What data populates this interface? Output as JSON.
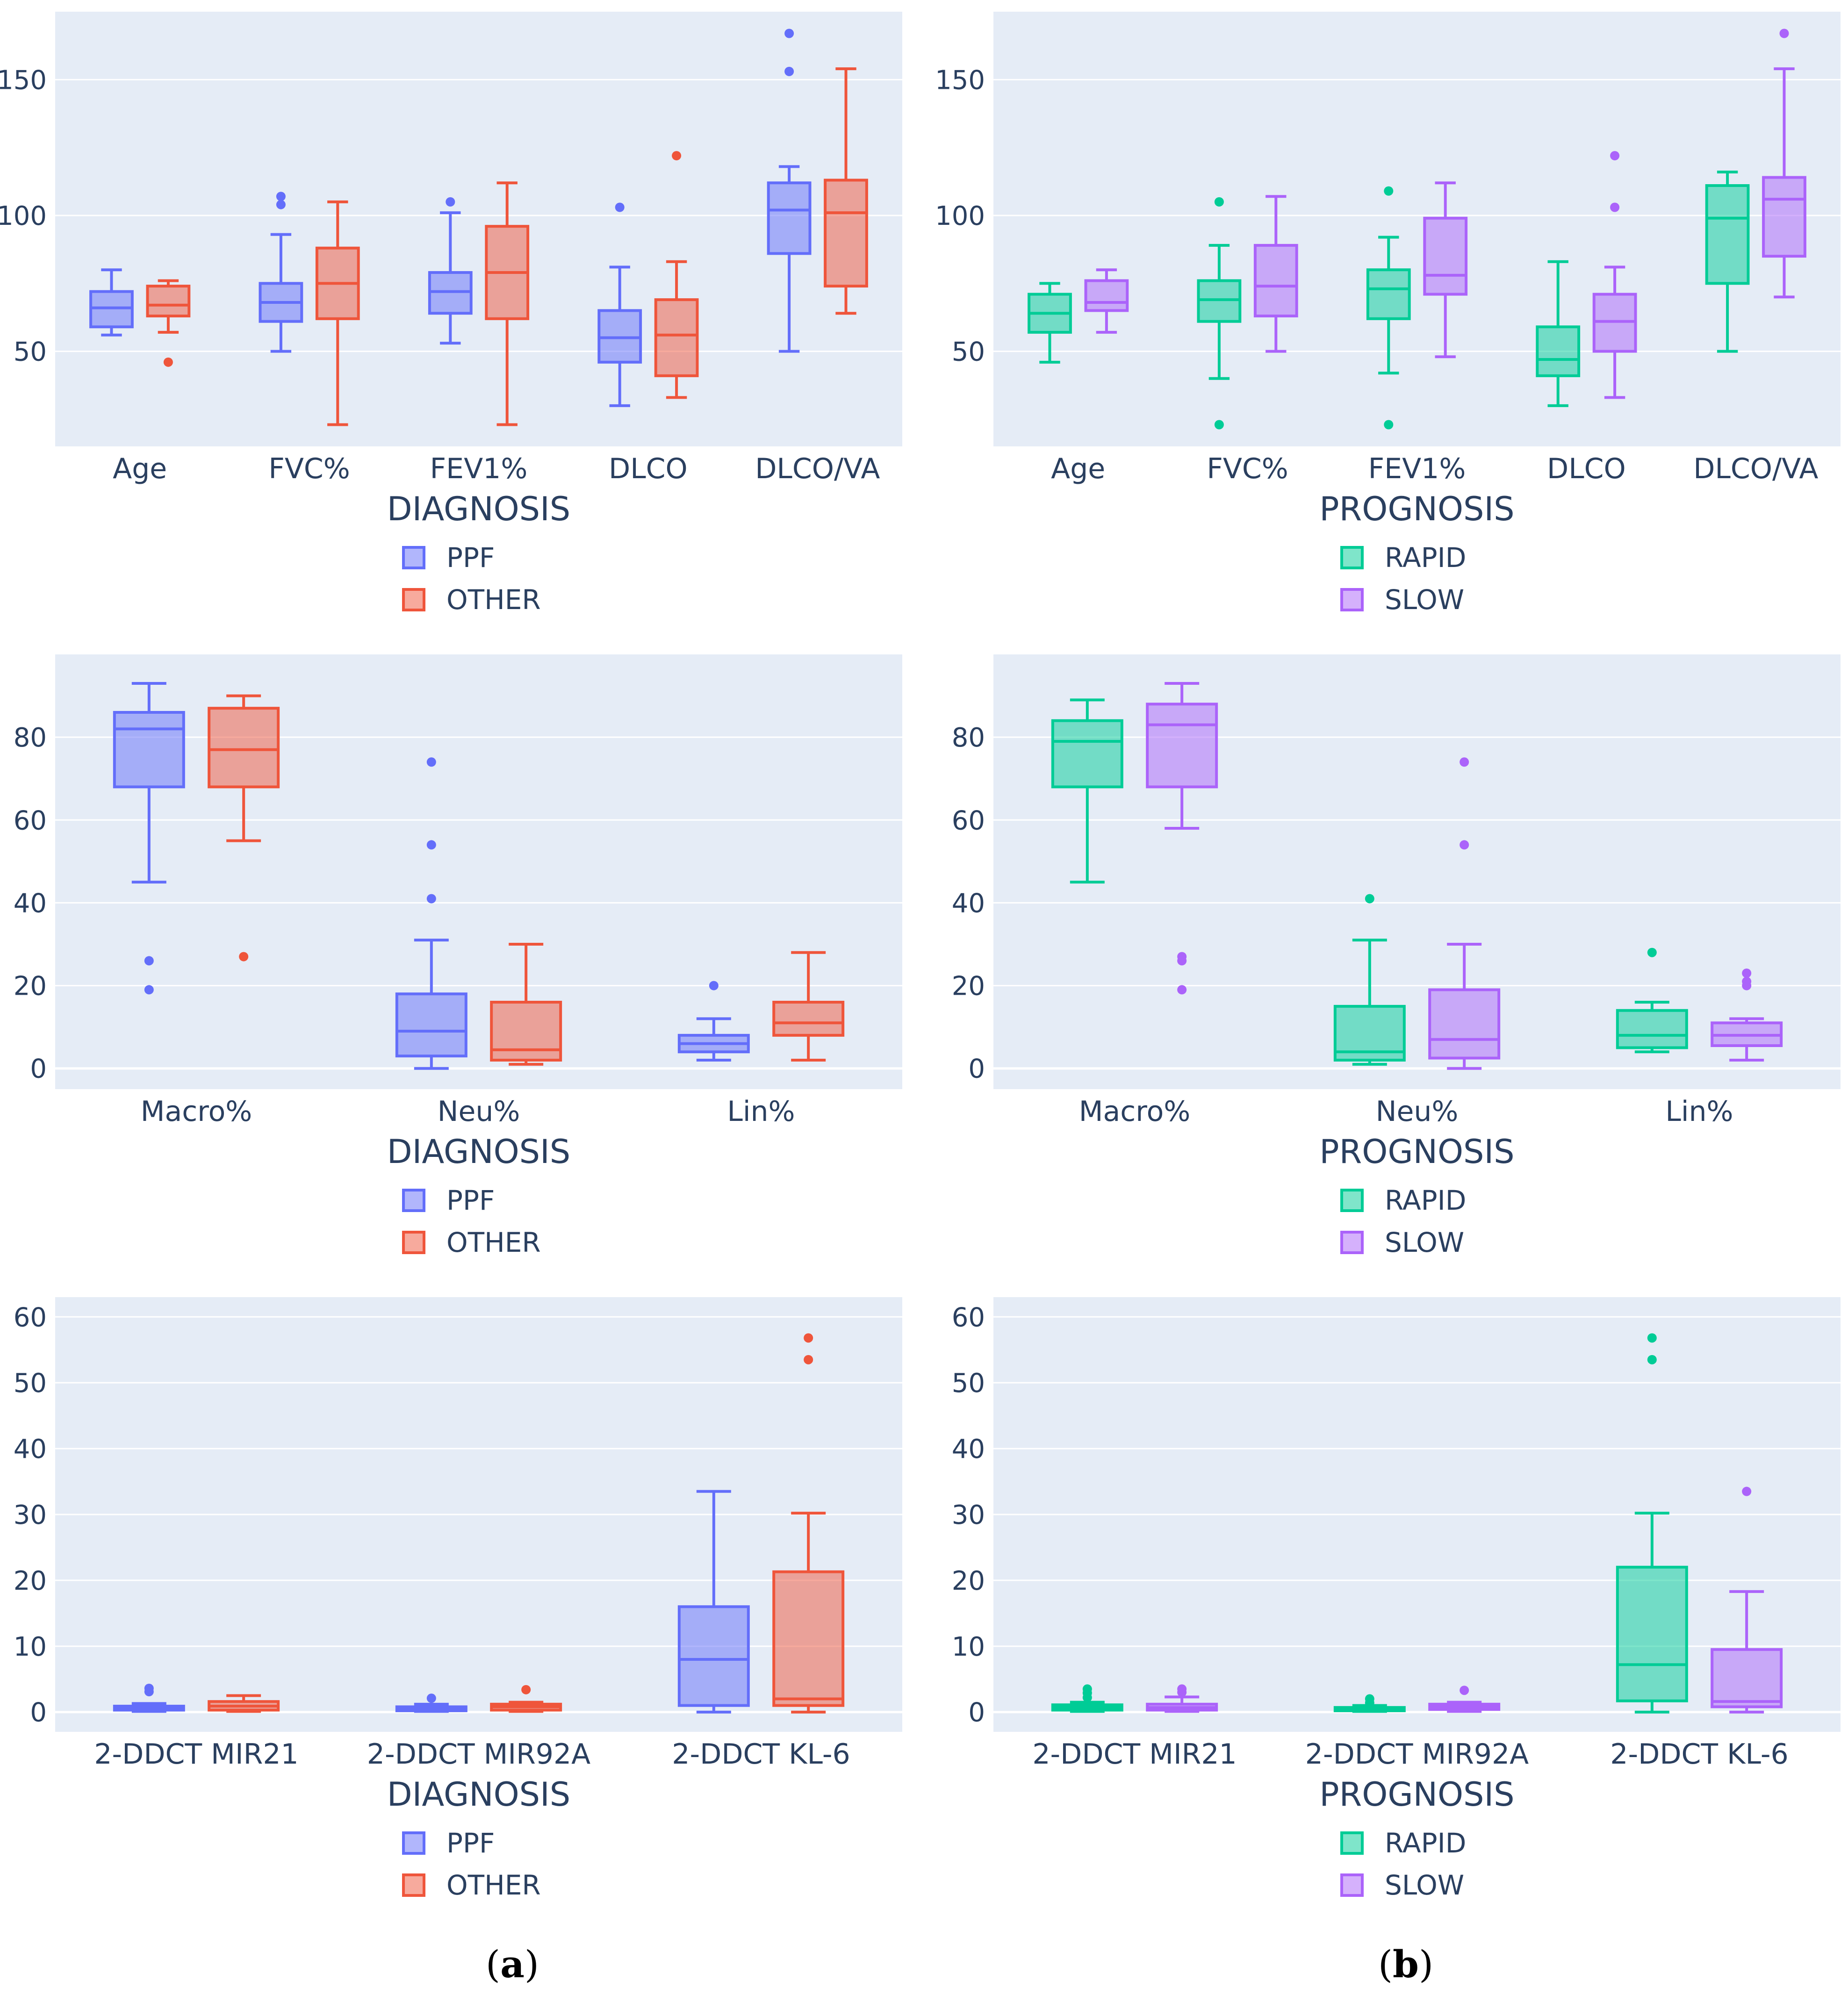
{
  "colors": {
    "plot_bg": "#e5ecf6",
    "grid": "#ffffff",
    "text": "#2a3f5f",
    "PPF": "#636efa",
    "OTHER": "#ef553b",
    "RAPID": "#00cc96",
    "SLOW": "#ab63fa"
  },
  "captions": {
    "left": "a",
    "right": "b"
  },
  "chart_data": [
    {
      "type": "box",
      "group_title": "DIAGNOSIS",
      "ylim": [
        15,
        175
      ],
      "yticks": [
        50,
        100,
        150
      ],
      "categories": [
        "Age",
        "FVC%",
        "FEV1%",
        "DLCO",
        "DLCO/VA"
      ],
      "series": [
        {
          "name": "PPF",
          "color_key": "PPF",
          "boxes": [
            {
              "min": 56,
              "q1": 59,
              "median": 66,
              "q3": 72,
              "max": 80,
              "outliers": []
            },
            {
              "min": 50,
              "q1": 61,
              "median": 68,
              "q3": 75,
              "max": 93,
              "outliers": [
                104,
                107
              ]
            },
            {
              "min": 53,
              "q1": 64,
              "median": 72,
              "q3": 79,
              "max": 101,
              "outliers": [
                105
              ]
            },
            {
              "min": 30,
              "q1": 46,
              "median": 55,
              "q3": 65,
              "max": 81,
              "outliers": [
                103
              ]
            },
            {
              "min": 50,
              "q1": 86,
              "median": 102,
              "q3": 112,
              "max": 118,
              "outliers": [
                153,
                167
              ]
            }
          ]
        },
        {
          "name": "OTHER",
          "color_key": "OTHER",
          "boxes": [
            {
              "min": 57,
              "q1": 63,
              "median": 67,
              "q3": 74,
              "max": 76,
              "outliers": [
                46
              ]
            },
            {
              "min": 23,
              "q1": 62,
              "median": 75,
              "q3": 88,
              "max": 105,
              "outliers": []
            },
            {
              "min": 23,
              "q1": 62,
              "median": 79,
              "q3": 96,
              "max": 112,
              "outliers": []
            },
            {
              "min": 33,
              "q1": 41,
              "median": 56,
              "q3": 69,
              "max": 83,
              "outliers": [
                122
              ]
            },
            {
              "min": 64,
              "q1": 74,
              "median": 101,
              "q3": 113,
              "max": 154,
              "outliers": []
            }
          ]
        }
      ]
    },
    {
      "type": "box",
      "group_title": "PROGNOSIS",
      "ylim": [
        15,
        175
      ],
      "yticks": [
        50,
        100,
        150
      ],
      "categories": [
        "Age",
        "FVC%",
        "FEV1%",
        "DLCO",
        "DLCO/VA"
      ],
      "series": [
        {
          "name": "RAPID",
          "color_key": "RAPID",
          "boxes": [
            {
              "min": 46,
              "q1": 57,
              "median": 64,
              "q3": 71,
              "max": 75,
              "outliers": []
            },
            {
              "min": 40,
              "q1": 61,
              "median": 69,
              "q3": 76,
              "max": 89,
              "outliers": [
                23,
                105
              ]
            },
            {
              "min": 42,
              "q1": 62,
              "median": 73,
              "q3": 80,
              "max": 92,
              "outliers": [
                23,
                109
              ]
            },
            {
              "min": 30,
              "q1": 41,
              "median": 47,
              "q3": 59,
              "max": 83,
              "outliers": []
            },
            {
              "min": 50,
              "q1": 75,
              "median": 99,
              "q3": 111,
              "max": 116,
              "outliers": []
            }
          ]
        },
        {
          "name": "SLOW",
          "color_key": "SLOW",
          "boxes": [
            {
              "min": 57,
              "q1": 65,
              "median": 68,
              "q3": 76,
              "max": 80,
              "outliers": []
            },
            {
              "min": 50,
              "q1": 63,
              "median": 74,
              "q3": 89,
              "max": 107,
              "outliers": []
            },
            {
              "min": 48,
              "q1": 71,
              "median": 78,
              "q3": 99,
              "max": 112,
              "outliers": []
            },
            {
              "min": 33,
              "q1": 50,
              "median": 61,
              "q3": 71,
              "max": 81,
              "outliers": [
                103,
                122
              ]
            },
            {
              "min": 70,
              "q1": 85,
              "median": 106,
              "q3": 114,
              "max": 154,
              "outliers": [
                167
              ]
            }
          ]
        }
      ]
    },
    {
      "type": "box",
      "group_title": "DIAGNOSIS",
      "ylim": [
        -5,
        100
      ],
      "yticks": [
        0,
        20,
        40,
        60,
        80
      ],
      "categories": [
        "Macro%",
        "Neu%",
        "Lin%"
      ],
      "series": [
        {
          "name": "PPF",
          "color_key": "PPF",
          "boxes": [
            {
              "min": 45,
              "q1": 68,
              "median": 82,
              "q3": 86,
              "max": 93,
              "outliers": [
                19,
                26
              ]
            },
            {
              "min": 0,
              "q1": 3,
              "median": 9,
              "q3": 18,
              "max": 31,
              "outliers": [
                41,
                54,
                74
              ]
            },
            {
              "min": 2,
              "q1": 4,
              "median": 6,
              "q3": 8,
              "max": 12,
              "outliers": [
                20
              ]
            }
          ]
        },
        {
          "name": "OTHER",
          "color_key": "OTHER",
          "boxes": [
            {
              "min": 55,
              "q1": 68,
              "median": 77,
              "q3": 87,
              "max": 90,
              "outliers": [
                27
              ]
            },
            {
              "min": 1,
              "q1": 2,
              "median": 4.5,
              "q3": 16,
              "max": 30,
              "outliers": []
            },
            {
              "min": 2,
              "q1": 8,
              "median": 11,
              "q3": 16,
              "max": 28,
              "outliers": []
            }
          ]
        }
      ]
    },
    {
      "type": "box",
      "group_title": "PROGNOSIS",
      "ylim": [
        -5,
        100
      ],
      "yticks": [
        0,
        20,
        40,
        60,
        80
      ],
      "categories": [
        "Macro%",
        "Neu%",
        "Lin%"
      ],
      "series": [
        {
          "name": "RAPID",
          "color_key": "RAPID",
          "boxes": [
            {
              "min": 45,
              "q1": 68,
              "median": 79,
              "q3": 84,
              "max": 89,
              "outliers": []
            },
            {
              "min": 1,
              "q1": 2,
              "median": 4,
              "q3": 15,
              "max": 31,
              "outliers": [
                41
              ]
            },
            {
              "min": 4,
              "q1": 5,
              "median": 8,
              "q3": 14,
              "max": 16,
              "outliers": [
                28
              ]
            }
          ]
        },
        {
          "name": "SLOW",
          "color_key": "SLOW",
          "boxes": [
            {
              "min": 58,
              "q1": 68,
              "median": 83,
              "q3": 88,
              "max": 93,
              "outliers": [
                19,
                26,
                27
              ]
            },
            {
              "min": 0,
              "q1": 2.5,
              "median": 7,
              "q3": 19,
              "max": 30,
              "outliers": [
                54,
                74
              ]
            },
            {
              "min": 2,
              "q1": 5.5,
              "median": 8,
              "q3": 11,
              "max": 12,
              "outliers": [
                20,
                21,
                23
              ]
            }
          ]
        }
      ]
    },
    {
      "type": "box",
      "group_title": "DIAGNOSIS",
      "ylim": [
        -3,
        63
      ],
      "yticks": [
        0,
        10,
        20,
        30,
        40,
        50,
        60
      ],
      "categories": [
        "2-DDCT MIR21",
        "2-DDCT MIR92A",
        "2-DDCT KL-6"
      ],
      "series": [
        {
          "name": "PPF",
          "color_key": "PPF",
          "boxes": [
            {
              "min": 0.1,
              "q1": 0.3,
              "median": 0.6,
              "q3": 0.9,
              "max": 1.3,
              "outliers": [
                3.1,
                3.6
              ]
            },
            {
              "min": 0.1,
              "q1": 0.2,
              "median": 0.5,
              "q3": 0.8,
              "max": 1.2,
              "outliers": [
                2.1
              ]
            },
            {
              "min": 0,
              "q1": 1,
              "median": 8,
              "q3": 16,
              "max": 33.5,
              "outliers": []
            }
          ]
        },
        {
          "name": "OTHER",
          "color_key": "OTHER",
          "boxes": [
            {
              "min": 0.1,
              "q1": 0.3,
              "median": 0.9,
              "q3": 1.6,
              "max": 2.5,
              "outliers": []
            },
            {
              "min": 0.1,
              "q1": 0.3,
              "median": 0.8,
              "q3": 1.2,
              "max": 1.5,
              "outliers": [
                3.4
              ]
            },
            {
              "min": 0,
              "q1": 1,
              "median": 2,
              "q3": 21.3,
              "max": 30.2,
              "outliers": [
                53.5,
                56.8
              ]
            }
          ]
        }
      ]
    },
    {
      "type": "box",
      "group_title": "PROGNOSIS",
      "ylim": [
        -3,
        63
      ],
      "yticks": [
        0,
        10,
        20,
        30,
        40,
        50,
        60
      ],
      "categories": [
        "2-DDCT MIR21",
        "2-DDCT MIR92A",
        "2-DDCT KL-6"
      ],
      "series": [
        {
          "name": "RAPID",
          "color_key": "RAPID",
          "boxes": [
            {
              "min": 0.1,
              "q1": 0.3,
              "median": 0.7,
              "q3": 1.1,
              "max": 1.5,
              "outliers": [
                2.2,
                2.9,
                3.5
              ]
            },
            {
              "min": 0.1,
              "q1": 0.2,
              "median": 0.4,
              "q3": 0.7,
              "max": 1.0,
              "outliers": [
                1.4,
                2.0
              ]
            },
            {
              "min": 0,
              "q1": 1.7,
              "median": 7.2,
              "q3": 22,
              "max": 30.2,
              "outliers": [
                53.5,
                56.8
              ]
            }
          ]
        },
        {
          "name": "SLOW",
          "color_key": "SLOW",
          "boxes": [
            {
              "min": 0.1,
              "q1": 0.3,
              "median": 0.7,
              "q3": 1.2,
              "max": 2.3,
              "outliers": [
                3.0,
                3.5
              ]
            },
            {
              "min": 0.1,
              "q1": 0.4,
              "median": 0.8,
              "q3": 1.2,
              "max": 1.5,
              "outliers": [
                3.3
              ]
            },
            {
              "min": 0,
              "q1": 0.8,
              "median": 1.6,
              "q3": 9.5,
              "max": 18.3,
              "outliers": [
                33.5
              ]
            }
          ]
        }
      ]
    }
  ]
}
